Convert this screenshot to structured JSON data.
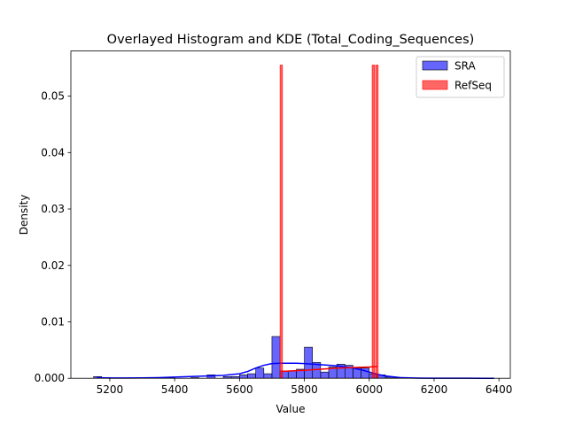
{
  "chart_data": {
    "type": "histogram",
    "title": "Overlayed Histogram and KDE (Total_Coding_Sequences)",
    "xlabel": "Value",
    "ylabel": "Density",
    "xlim": [
      5080,
      6435
    ],
    "ylim": [
      0,
      0.058
    ],
    "xticks": [
      5200,
      5400,
      5600,
      5800,
      6000,
      6200,
      6400
    ],
    "yticks": [
      0.0,
      0.01,
      0.02,
      0.03,
      0.04,
      0.05
    ],
    "ytick_labels": [
      "0.000",
      "0.01",
      "0.02",
      "0.03",
      "0.04",
      "0.05"
    ],
    "grid": false,
    "legend_position": "top-right",
    "series": [
      {
        "name": "SRA",
        "color": "#0000ff",
        "bin_width": 25,
        "bins": [
          {
            "x0": 5150,
            "density": 0.0003
          },
          {
            "x0": 5175,
            "density": 0.0001
          },
          {
            "x0": 5350,
            "density": 0.0001
          },
          {
            "x0": 5375,
            "density": 0.0001
          },
          {
            "x0": 5450,
            "density": 0.0001
          },
          {
            "x0": 5500,
            "density": 0.0006
          },
          {
            "x0": 5550,
            "density": 0.0003
          },
          {
            "x0": 5575,
            "density": 0.0003
          },
          {
            "x0": 5600,
            "density": 0.0006
          },
          {
            "x0": 5625,
            "density": 0.0008
          },
          {
            "x0": 5650,
            "density": 0.0018
          },
          {
            "x0": 5675,
            "density": 0.0008
          },
          {
            "x0": 5700,
            "density": 0.0074
          },
          {
            "x0": 5725,
            "density": 0.0013
          },
          {
            "x0": 5750,
            "density": 0.0013
          },
          {
            "x0": 5775,
            "density": 0.0016
          },
          {
            "x0": 5800,
            "density": 0.0055
          },
          {
            "x0": 5825,
            "density": 0.0028
          },
          {
            "x0": 5850,
            "density": 0.0011
          },
          {
            "x0": 5875,
            "density": 0.002
          },
          {
            "x0": 5900,
            "density": 0.0025
          },
          {
            "x0": 5925,
            "density": 0.0023
          },
          {
            "x0": 5950,
            "density": 0.0018
          },
          {
            "x0": 5975,
            "density": 0.0018
          },
          {
            "x0": 6000,
            "density": 0.0008
          },
          {
            "x0": 6025,
            "density": 0.0006
          },
          {
            "x0": 6050,
            "density": 0.0002
          },
          {
            "x0": 6075,
            "density": 0.0001
          }
        ],
        "kde": {
          "x": [
            5160,
            5200,
            5250,
            5300,
            5350,
            5400,
            5450,
            5500,
            5550,
            5600,
            5625,
            5650,
            5675,
            5700,
            5725,
            5750,
            5775,
            5800,
            5825,
            5850,
            5875,
            5900,
            5925,
            5950,
            5975,
            6000,
            6025,
            6050,
            6100,
            6150,
            6200,
            6250,
            6300,
            6350,
            6385
          ],
          "y": [
            0.0001,
            5e-05,
            5e-05,
            8e-05,
            0.00012,
            0.0002,
            0.0003,
            0.0004,
            0.0005,
            0.0008,
            0.0012,
            0.0018,
            0.0023,
            0.0026,
            0.00265,
            0.00265,
            0.00265,
            0.0026,
            0.0025,
            0.0024,
            0.0023,
            0.0022,
            0.002,
            0.0018,
            0.0015,
            0.0011,
            0.0007,
            0.0004,
            0.0001,
            4e-05,
            2e-05,
            1e-05,
            5e-06,
            2e-06,
            0.0
          ]
        }
      },
      {
        "name": "RefSeq",
        "color": "#ff0000",
        "bin_width": 7.5,
        "bins": [
          {
            "x0": 5725,
            "density": 0.0555
          },
          {
            "x0": 6009,
            "density": 0.0555
          },
          {
            "x0": 6020,
            "density": 0.0555
          }
        ],
        "kde": {
          "x": [
            5730,
            5760,
            5800,
            5850,
            5900,
            5950,
            6000,
            6025
          ],
          "y": [
            0.0012,
            0.0013,
            0.0014,
            0.0016,
            0.0018,
            0.0019,
            0.002,
            0.0021
          ]
        }
      }
    ]
  }
}
